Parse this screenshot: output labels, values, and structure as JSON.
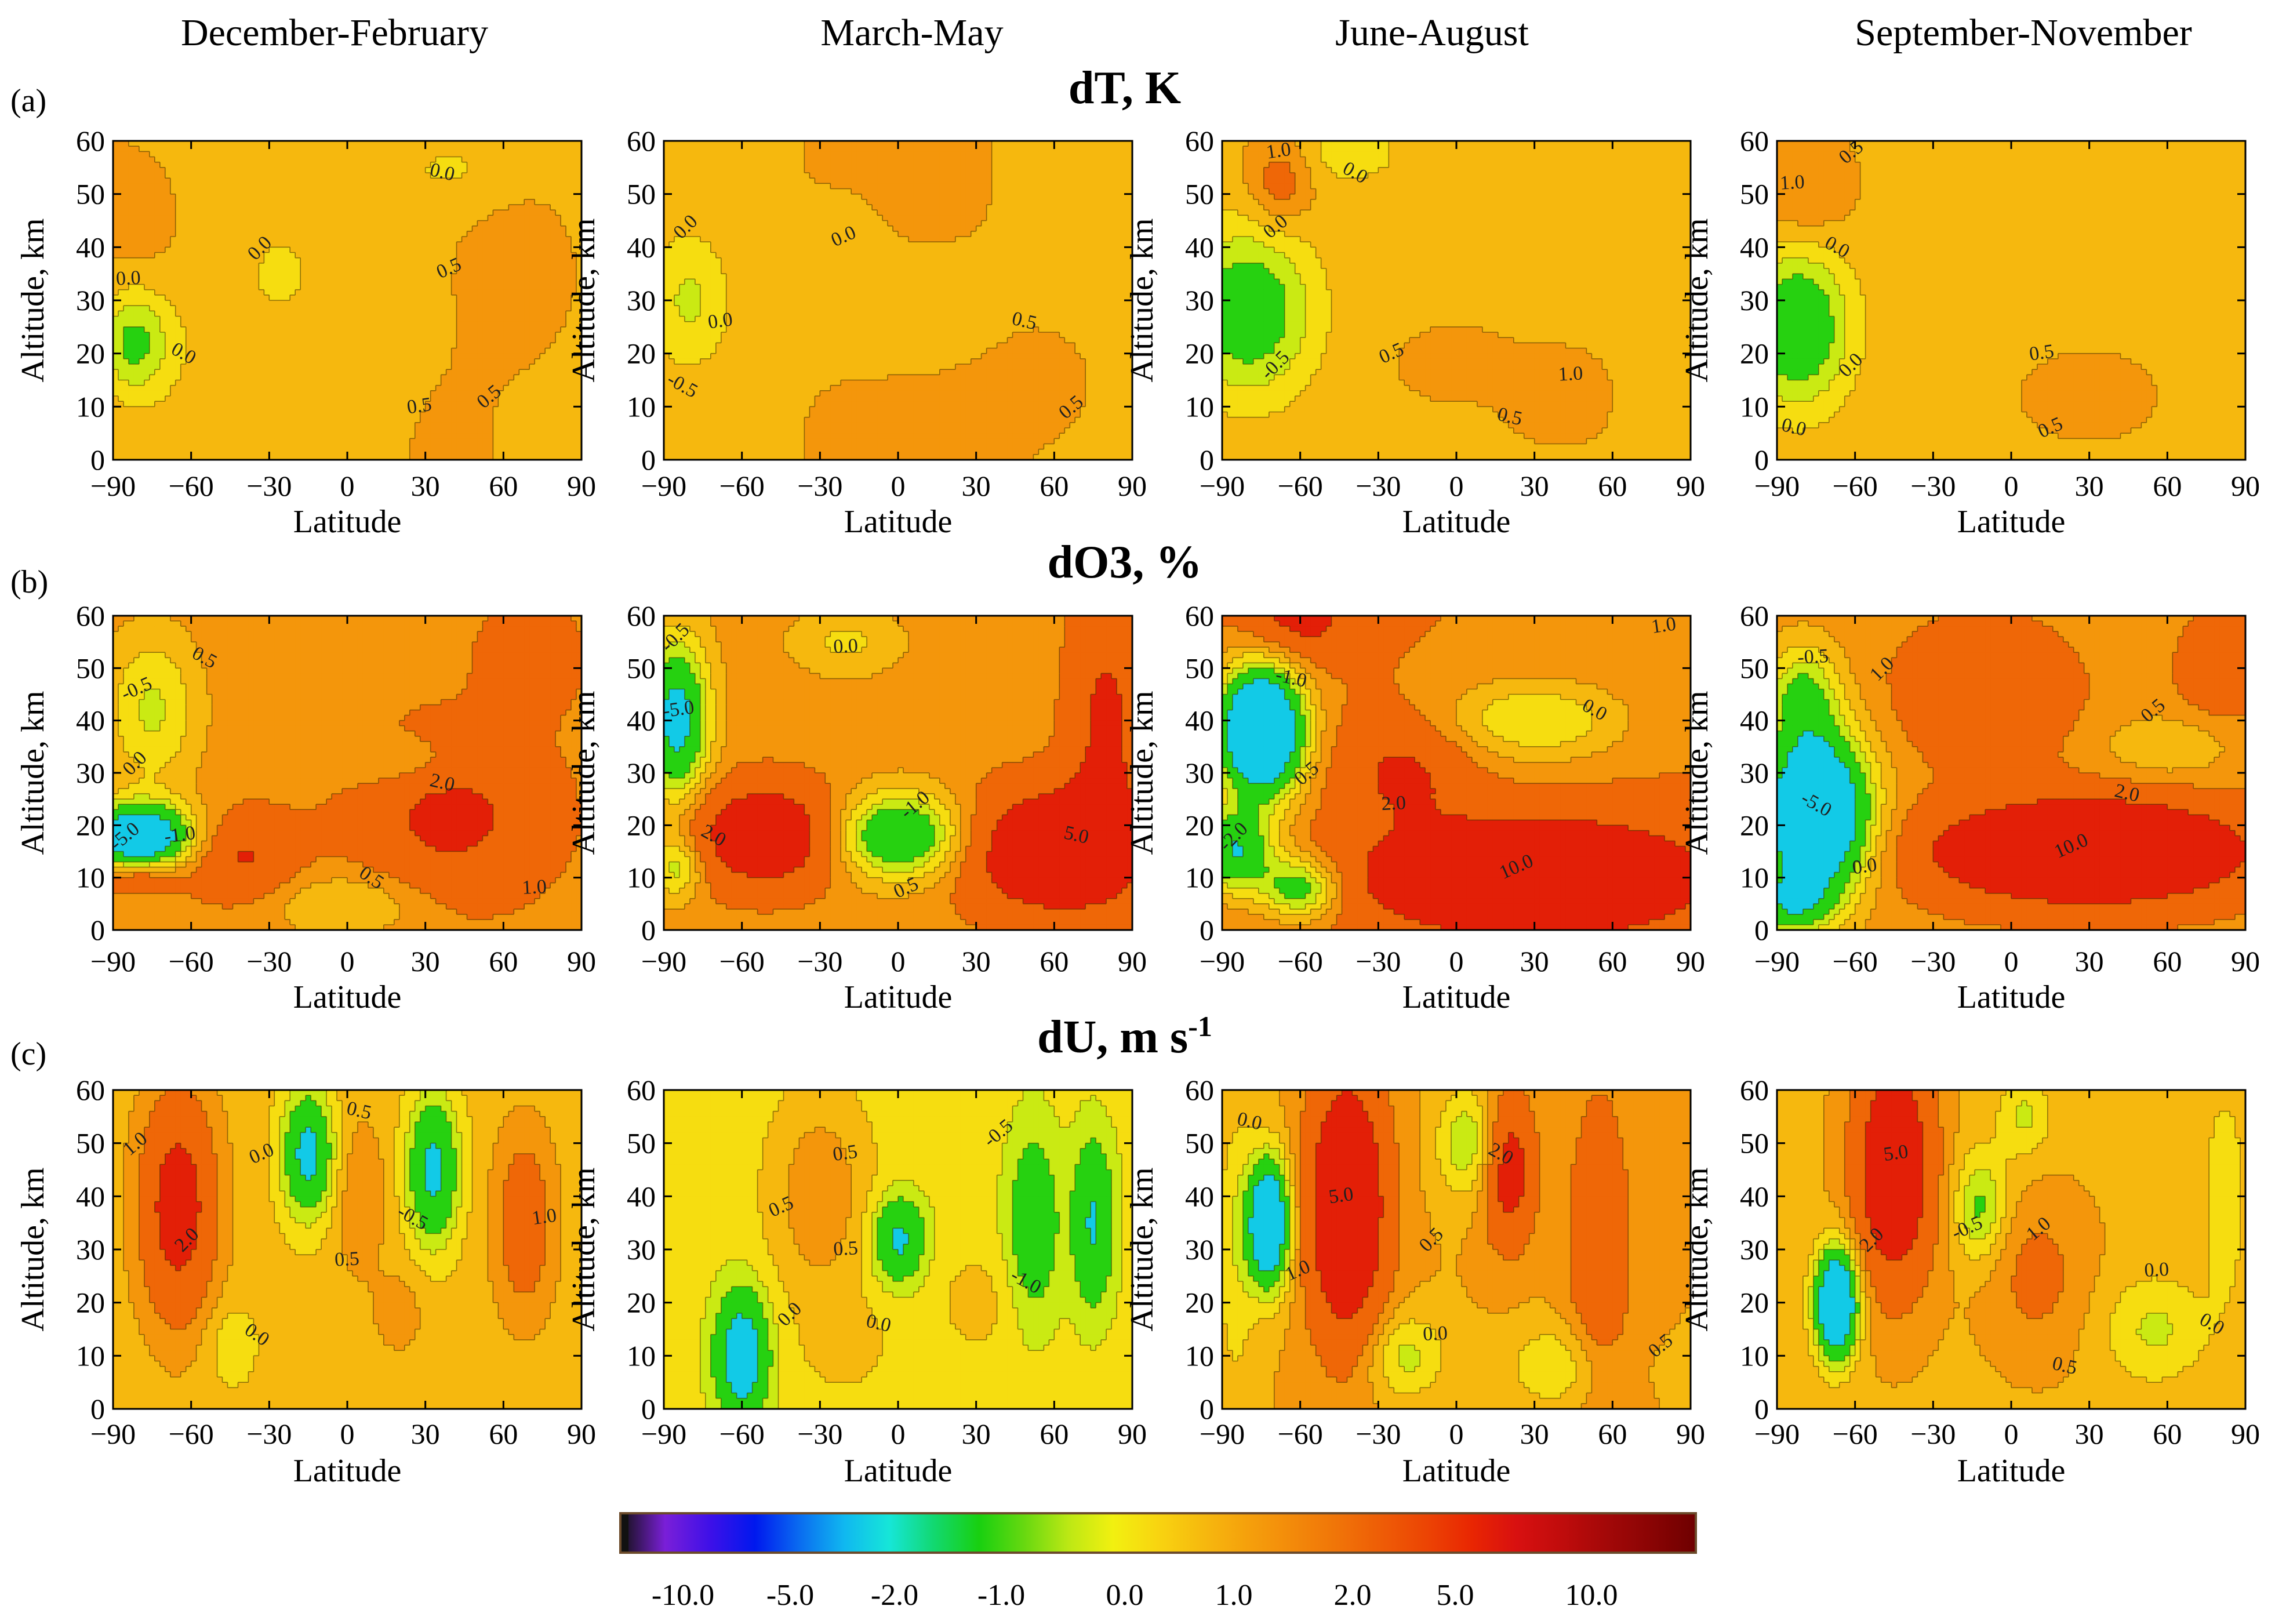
{
  "chart_data": {
    "type": "contour",
    "seasons": [
      "December-February",
      "March-May",
      "June-August",
      "September-November"
    ],
    "rows": [
      {
        "id": "a",
        "panel_label": "(a)",
        "title": "dT, K",
        "unit": "K",
        "title_sup": "",
        "contour_labels": [
          [
            "0.0",
            "0.5",
            "0.0",
            "0.5",
            "0.0",
            "0.5",
            "0.0"
          ],
          [
            "0.0",
            "0.0",
            "-0.5",
            "0.0",
            "0.5",
            "0.5"
          ],
          [
            "-0.5",
            "1.0",
            "0.0",
            "0.5",
            "0.5",
            "0.0",
            "1.0"
          ],
          [
            "0.0",
            "0.5",
            "0.0",
            "0.5",
            "0.0",
            "0.5",
            "1.0"
          ]
        ]
      },
      {
        "id": "b",
        "panel_label": "(b)",
        "title": "dO3, %",
        "unit": "%",
        "title_sup": "",
        "contour_labels": [
          [
            "0.0",
            "-1.0",
            "0.5",
            "-0.5",
            "2.0",
            "-5.0",
            "1.0",
            "0.5"
          ],
          [
            "-0.5",
            "-5.0",
            "2.0",
            "0.5",
            "5.0",
            "-1.0",
            "0.0"
          ],
          [
            "-2.0",
            "1.0",
            "0.0",
            "10.0",
            "-1.0",
            "0.5",
            "2.0"
          ],
          [
            "1.0",
            "0.0",
            "-5.0",
            "10.0",
            "2.0",
            "0.5",
            "-0.5"
          ]
        ]
      },
      {
        "id": "c",
        "panel_label": "(c)",
        "title": "dU, m s",
        "unit": "m s-1",
        "title_sup": "-1",
        "contour_labels": [
          [
            "2.0",
            "1.0",
            "-0.5",
            "0.0",
            "0.5",
            "1.0",
            "0.5",
            "0.0"
          ],
          [
            "0.0",
            "0.5",
            "-1.0",
            "0.5",
            "0.0",
            "-0.5",
            "0.5"
          ],
          [
            "0.5",
            "5.0",
            "2.0",
            "1.0",
            "0.0",
            "0.5",
            "0.0"
          ],
          [
            "2.0",
            "5.0",
            "0.0",
            "-0.5",
            "0.5",
            "1.0",
            "0.0"
          ]
        ]
      }
    ],
    "x_axis": {
      "label": "Latitude",
      "range": [
        -90,
        90
      ],
      "ticks": [
        -90,
        -60,
        -30,
        0,
        30,
        60,
        90
      ],
      "tick_labels": [
        "−90",
        "−60",
        "−30",
        "0",
        "30",
        "60",
        "90"
      ]
    },
    "y_axis": {
      "label": "Altitude, km",
      "range": [
        0,
        60
      ],
      "ticks": [
        0,
        10,
        20,
        30,
        40,
        50,
        60
      ],
      "tick_labels": [
        "0",
        "10",
        "20",
        "30",
        "40",
        "50",
        "60"
      ]
    },
    "colorbar": {
      "tick_labels": [
        "-10.0",
        "-5.0",
        "-2.0",
        "-1.0",
        "0.0",
        "1.0",
        "2.0",
        "5.0",
        "10.0"
      ],
      "colors": [
        "#111111",
        "#7a1fd8",
        "#3e10e8",
        "#0018ee",
        "#0a6cf0",
        "#10b8f0",
        "#16e6d8",
        "#12d870",
        "#18d010",
        "#66d810",
        "#bce814",
        "#f2f010",
        "#f8d410",
        "#f6b90e",
        "#f5a00c",
        "#f38a0a",
        "#f07408",
        "#ee5c06",
        "#ec4404",
        "#e92602",
        "#d81010",
        "#c00c0c",
        "#a30808",
        "#8a0404",
        "#6e0000"
      ]
    }
  }
}
